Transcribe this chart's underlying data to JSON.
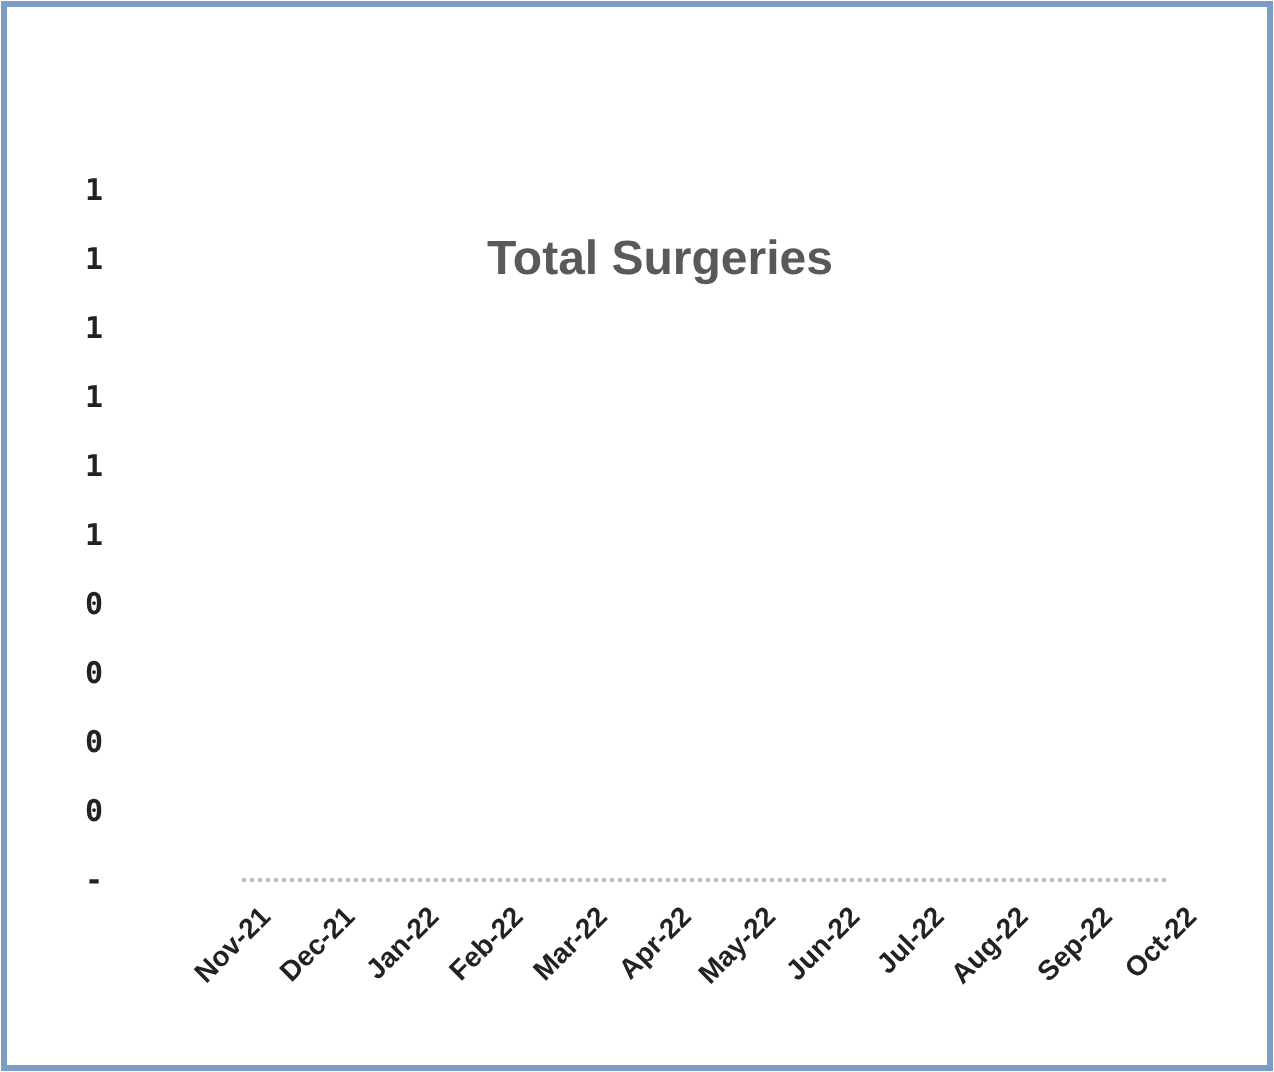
{
  "chart_data": {
    "type": "line",
    "title": "Total Surgeries",
    "categories": [
      "Nov-21",
      "Dec-21",
      "Jan-22",
      "Feb-22",
      "Mar-22",
      "Apr-22",
      "May-22",
      "Jun-22",
      "Jul-22",
      "Aug-22",
      "Sep-22",
      "Oct-22"
    ],
    "series": [
      {
        "color": "#bfbfbf",
        "values": [
          0,
          0,
          0,
          0,
          0,
          0,
          0,
          0,
          0,
          0,
          0,
          0
        ]
      }
    ],
    "line_style": "dotted",
    "ylim": [
      0,
      1
    ],
    "yticks": [
      {
        "value": 0,
        "label": "-"
      },
      {
        "value": 0.1,
        "label": "0"
      },
      {
        "value": 0.2,
        "label": "0"
      },
      {
        "value": 0.3,
        "label": "0"
      },
      {
        "value": 0.4,
        "label": "0"
      },
      {
        "value": 0.5,
        "label": "1"
      },
      {
        "value": 0.6,
        "label": "1"
      },
      {
        "value": 0.7,
        "label": "1"
      },
      {
        "value": 0.8,
        "label": "1"
      },
      {
        "value": 0.9,
        "label": "1"
      },
      {
        "value": 1,
        "label": "1"
      }
    ]
  }
}
